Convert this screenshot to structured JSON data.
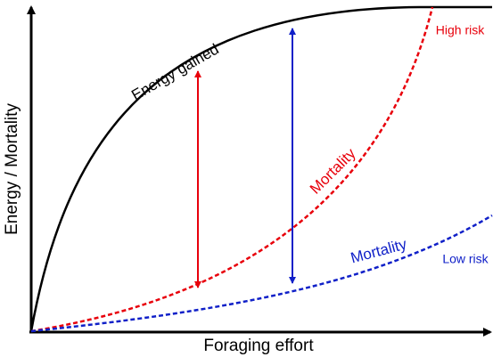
{
  "axes": {
    "y_label": "Energy / Mortality",
    "x_label": "Foraging effort"
  },
  "curves": {
    "energy": "Energy gained",
    "mortality_high": "Mortality",
    "mortality_low": "Mortality"
  },
  "annotations": {
    "high": "High risk",
    "low": "Low risk"
  }
}
